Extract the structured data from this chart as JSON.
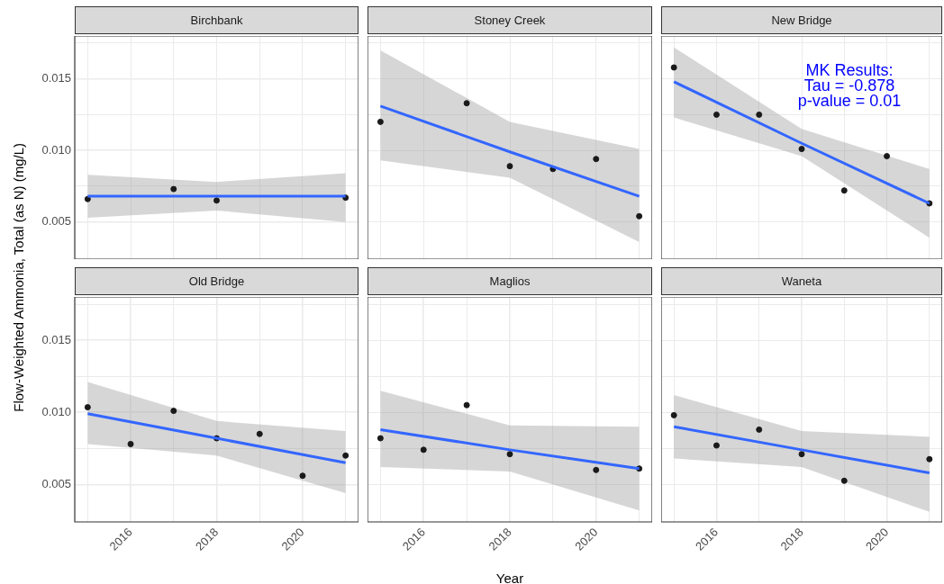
{
  "chart_data": [
    {
      "type": "scatter",
      "title": "Birchbank",
      "ylabel": "Flow-Weighted Ammonia, Total (as N) (mg/L)",
      "xlim": [
        2014.7,
        2021.3
      ],
      "ylim": [
        0.0024,
        0.018
      ],
      "xticks": [
        {
          "value": 2015,
          "label": null
        },
        {
          "value": 2016,
          "label": null
        },
        {
          "value": 2017,
          "label": null
        },
        {
          "value": 2018,
          "label": null
        },
        {
          "value": 2019,
          "label": null
        },
        {
          "value": 2020,
          "label": null
        },
        {
          "value": 2021,
          "label": null
        }
      ],
      "yticks": [
        {
          "value": 0.005,
          "label": "0.005"
        },
        {
          "value": 0.0075,
          "label": null
        },
        {
          "value": 0.01,
          "label": "0.010"
        },
        {
          "value": 0.0125,
          "label": null
        },
        {
          "value": 0.015,
          "label": "0.015"
        },
        {
          "value": 0.0175,
          "label": null
        }
      ],
      "grid": true,
      "tick_labels": "y",
      "series": [
        {
          "type": "scatter",
          "color": "#1a1a1a",
          "marker": "circle",
          "x": [
            2015,
            2017,
            2018,
            2021
          ],
          "values": [
            0.0066,
            0.0073,
            0.0065,
            0.0067
          ]
        },
        {
          "type": "line",
          "color": "#3366ff",
          "marker": "none",
          "x": [
            2015,
            2018,
            2021
          ],
          "values": [
            0.0068,
            0.0068,
            0.0068
          ],
          "lower": [
            0.0053,
            0.0058,
            0.005
          ],
          "upper": [
            0.0083,
            0.0078,
            0.0084
          ]
        }
      ]
    },
    {
      "type": "scatter",
      "title": "Stoney Creek",
      "xlim": [
        2014.7,
        2021.3
      ],
      "ylim": [
        0.0024,
        0.018
      ],
      "xticks": [
        {
          "value": 2015,
          "label": null
        },
        {
          "value": 2016,
          "label": null
        },
        {
          "value": 2017,
          "label": null
        },
        {
          "value": 2018,
          "label": null
        },
        {
          "value": 2019,
          "label": null
        },
        {
          "value": 2020,
          "label": null
        },
        {
          "value": 2021,
          "label": null
        }
      ],
      "yticks": [
        {
          "value": 0.005,
          "label": null
        },
        {
          "value": 0.0075,
          "label": null
        },
        {
          "value": 0.01,
          "label": null
        },
        {
          "value": 0.0125,
          "label": null
        },
        {
          "value": 0.015,
          "label": null
        },
        {
          "value": 0.0175,
          "label": null
        }
      ],
      "grid": true,
      "tick_labels": false,
      "series": [
        {
          "type": "scatter",
          "color": "#1a1a1a",
          "marker": "circle",
          "x": [
            2015,
            2017,
            2018,
            2019,
            2020,
            2021
          ],
          "values": [
            0.012,
            0.0133,
            0.0089,
            0.0087,
            0.0094,
            0.0054
          ]
        },
        {
          "type": "line",
          "color": "#3366ff",
          "marker": "none",
          "x": [
            2015,
            2018,
            2021
          ],
          "values": [
            0.0131,
            0.0099,
            0.0068
          ],
          "lower": [
            0.0093,
            0.0081,
            0.0036
          ],
          "upper": [
            0.017,
            0.012,
            0.0101
          ]
        }
      ]
    },
    {
      "type": "scatter",
      "title": "New Bridge",
      "annotations": [
        "MK Results:",
        "Tau = -0.878",
        "p-value = 0.01"
      ],
      "xlim": [
        2014.7,
        2021.3
      ],
      "ylim": [
        0.0024,
        0.018
      ],
      "xticks": [
        {
          "value": 2015,
          "label": null
        },
        {
          "value": 2016,
          "label": null
        },
        {
          "value": 2017,
          "label": null
        },
        {
          "value": 2018,
          "label": null
        },
        {
          "value": 2019,
          "label": null
        },
        {
          "value": 2020,
          "label": null
        },
        {
          "value": 2021,
          "label": null
        }
      ],
      "yticks": [
        {
          "value": 0.005,
          "label": null
        },
        {
          "value": 0.0075,
          "label": null
        },
        {
          "value": 0.01,
          "label": null
        },
        {
          "value": 0.0125,
          "label": null
        },
        {
          "value": 0.015,
          "label": null
        },
        {
          "value": 0.0175,
          "label": null
        }
      ],
      "grid": true,
      "tick_labels": false,
      "series": [
        {
          "type": "scatter",
          "color": "#1a1a1a",
          "marker": "circle",
          "x": [
            2015,
            2016,
            2017,
            2018,
            2019,
            2020,
            2021
          ],
          "values": [
            0.0158,
            0.0125,
            0.0125,
            0.0101,
            0.0072,
            0.0096,
            0.0063
          ]
        },
        {
          "type": "line",
          "color": "#3366ff",
          "marker": "none",
          "x": [
            2015,
            2018,
            2021
          ],
          "values": [
            0.0148,
            0.0105,
            0.0063
          ],
          "lower": [
            0.0123,
            0.0096,
            0.0039
          ],
          "upper": [
            0.0172,
            0.0115,
            0.0087
          ]
        }
      ]
    },
    {
      "type": "scatter",
      "title": "Old Bridge",
      "xlim": [
        2014.7,
        2021.3
      ],
      "ylim": [
        0.0024,
        0.018
      ],
      "xticks": [
        {
          "value": 2015,
          "label": null
        },
        2016,
        {
          "value": 2017,
          "label": null
        },
        2018,
        {
          "value": 2019,
          "label": null
        },
        2020,
        {
          "value": 2021,
          "label": null
        }
      ],
      "yticks": [
        {
          "value": 0.005,
          "label": "0.005"
        },
        {
          "value": 0.0075,
          "label": null
        },
        {
          "value": 0.01,
          "label": "0.010"
        },
        {
          "value": 0.0125,
          "label": null
        },
        {
          "value": 0.015,
          "label": "0.015"
        },
        {
          "value": 0.0175,
          "label": null
        }
      ],
      "grid": true,
      "series": [
        {
          "type": "scatter",
          "color": "#1a1a1a",
          "marker": "circle",
          "x": [
            2015,
            2016,
            2017,
            2018,
            2019,
            2020,
            2021
          ],
          "values": [
            0.01035,
            0.0078,
            0.0101,
            0.0082,
            0.0085,
            0.0056,
            0.007
          ]
        },
        {
          "type": "line",
          "color": "#3366ff",
          "marker": "none",
          "x": [
            2015,
            2018,
            2021
          ],
          "values": [
            0.0099,
            0.0082,
            0.0065
          ],
          "lower": [
            0.0078,
            0.007,
            0.0044
          ],
          "upper": [
            0.0121,
            0.0094,
            0.0087
          ]
        }
      ]
    },
    {
      "type": "scatter",
      "title": "Maglios",
      "xlabel": "Year",
      "xlim": [
        2014.7,
        2021.3
      ],
      "ylim": [
        0.0024,
        0.018
      ],
      "xticks": [
        {
          "value": 2015,
          "label": null
        },
        2016,
        {
          "value": 2017,
          "label": null
        },
        2018,
        {
          "value": 2019,
          "label": null
        },
        2020,
        {
          "value": 2021,
          "label": null
        }
      ],
      "yticks": [
        {
          "value": 0.005,
          "label": null
        },
        {
          "value": 0.0075,
          "label": null
        },
        {
          "value": 0.01,
          "label": null
        },
        {
          "value": 0.0125,
          "label": null
        },
        {
          "value": 0.015,
          "label": null
        },
        {
          "value": 0.0175,
          "label": null
        }
      ],
      "grid": true,
      "tick_labels": "x",
      "series": [
        {
          "type": "scatter",
          "color": "#1a1a1a",
          "marker": "circle",
          "x": [
            2015,
            2016,
            2017,
            2018,
            2020,
            2021
          ],
          "values": [
            0.0082,
            0.0074,
            0.0105,
            0.0071,
            0.006,
            0.0061
          ]
        },
        {
          "type": "line",
          "color": "#3366ff",
          "marker": "none",
          "x": [
            2015,
            2018,
            2021
          ],
          "values": [
            0.0088,
            0.0074,
            0.0061
          ],
          "lower": [
            0.0062,
            0.0059,
            0.0032
          ],
          "upper": [
            0.0115,
            0.0091,
            0.009
          ]
        }
      ]
    },
    {
      "type": "scatter",
      "title": "Waneta",
      "xlim": [
        2014.7,
        2021.3
      ],
      "ylim": [
        0.0024,
        0.018
      ],
      "xticks": [
        {
          "value": 2015,
          "label": null
        },
        2016,
        {
          "value": 2017,
          "label": null
        },
        2018,
        {
          "value": 2019,
          "label": null
        },
        2020,
        {
          "value": 2021,
          "label": null
        }
      ],
      "yticks": [
        {
          "value": 0.005,
          "label": null
        },
        {
          "value": 0.0075,
          "label": null
        },
        {
          "value": 0.01,
          "label": null
        },
        {
          "value": 0.0125,
          "label": null
        },
        {
          "value": 0.015,
          "label": null
        },
        {
          "value": 0.0175,
          "label": null
        }
      ],
      "grid": true,
      "tick_labels": "x",
      "series": [
        {
          "type": "scatter",
          "color": "#1a1a1a",
          "marker": "circle",
          "x": [
            2015,
            2016,
            2017,
            2018,
            2019,
            2021
          ],
          "values": [
            0.0098,
            0.0077,
            0.0088,
            0.0071,
            0.00525,
            0.00675
          ]
        },
        {
          "type": "line",
          "color": "#3366ff",
          "marker": "none",
          "x": [
            2015,
            2018,
            2021
          ],
          "values": [
            0.009,
            0.0074,
            0.0058
          ],
          "lower": [
            0.0068,
            0.0062,
            0.0031
          ],
          "upper": [
            0.0112,
            0.0087,
            0.0083
          ]
        }
      ]
    }
  ]
}
